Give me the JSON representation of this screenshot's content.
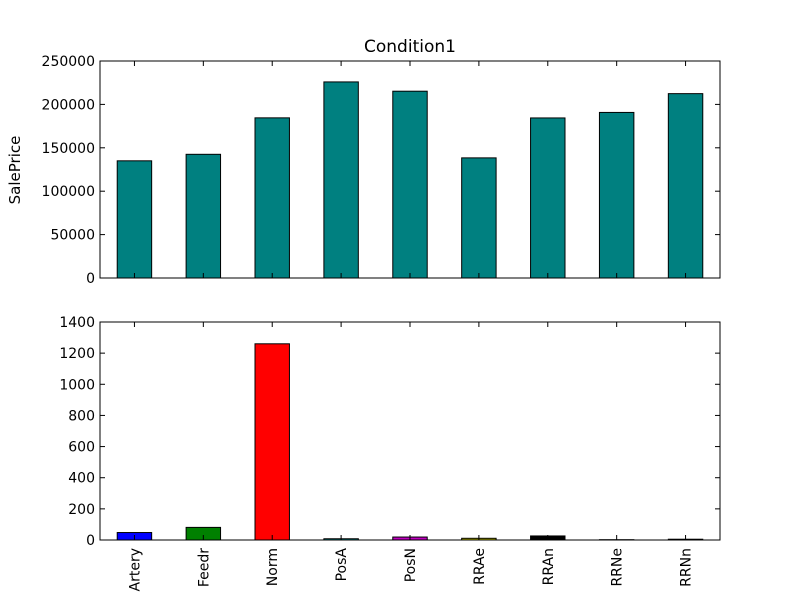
{
  "chart_data": [
    {
      "type": "bar",
      "title": "Condition1",
      "xlabel": "",
      "ylabel": "SalePrice",
      "ylim": [
        0,
        250000
      ],
      "yticks": [
        0,
        50000,
        100000,
        150000,
        200000,
        250000
      ],
      "categories": [
        "Artery",
        "Feedr",
        "Norm",
        "PosA",
        "PosN",
        "RRAe",
        "RRAn",
        "RRNe",
        "RRNn"
      ],
      "values": [
        135000,
        142500,
        184500,
        225900,
        215200,
        138400,
        184400,
        190750,
        212400
      ],
      "colors": [
        "#008080",
        "#008080",
        "#008080",
        "#008080",
        "#008080",
        "#008080",
        "#008080",
        "#008080",
        "#008080"
      ],
      "show_xticklabels": false,
      "grid": false
    },
    {
      "type": "bar",
      "title": "",
      "xlabel": "",
      "ylabel": "",
      "ylim": [
        0,
        1400
      ],
      "yticks": [
        0,
        200,
        400,
        600,
        800,
        1000,
        1200,
        1400
      ],
      "categories": [
        "Artery",
        "Feedr",
        "Norm",
        "PosA",
        "PosN",
        "RRAe",
        "RRAn",
        "RRNe",
        "RRNn"
      ],
      "values": [
        48,
        81,
        1260,
        8,
        19,
        11,
        26,
        2,
        5
      ],
      "colors": [
        "#0000ff",
        "#008000",
        "#ff0000",
        "#00bfbf",
        "#bf00bf",
        "#bfbf00",
        "#000000",
        "#0000ff",
        "#008000"
      ],
      "show_xticklabels": true,
      "grid": false
    }
  ]
}
